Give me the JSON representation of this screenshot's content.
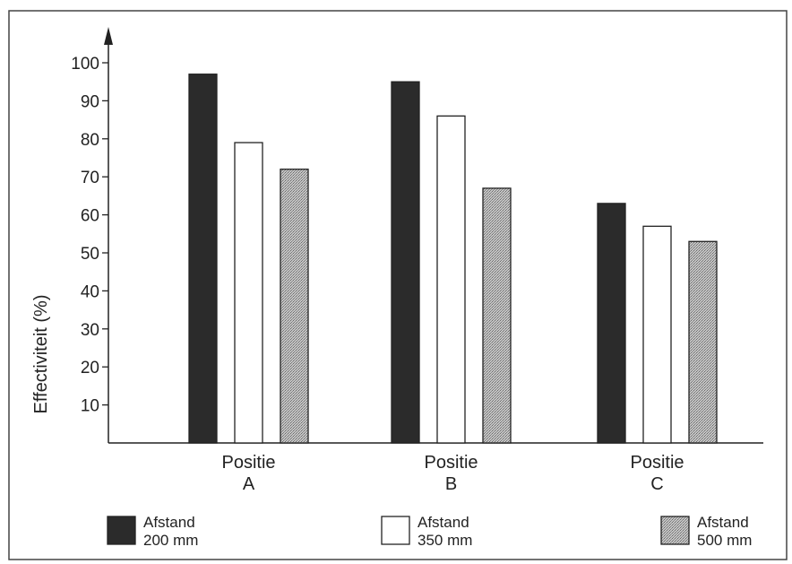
{
  "chart_data": {
    "type": "bar",
    "title": "",
    "xlabel": "",
    "ylabel": "Effectiviteit (%)",
    "ylim": [
      0,
      100
    ],
    "yticks": [
      10,
      20,
      30,
      40,
      50,
      60,
      70,
      80,
      90,
      100
    ],
    "categories": [
      [
        "Positie",
        "A"
      ],
      [
        "Positie",
        "B"
      ],
      [
        "Positie",
        "C"
      ]
    ],
    "series": [
      {
        "name": "Afstand 200 mm",
        "name_lines": [
          "Afstand",
          "200 mm"
        ],
        "fill": "#2b2b2b",
        "pattern": "solid",
        "values": [
          97,
          95,
          63
        ]
      },
      {
        "name": "Afstand 350 mm",
        "name_lines": [
          "Afstand",
          "350 mm"
        ],
        "fill": "#ffffff",
        "pattern": "solid",
        "values": [
          79,
          86,
          57
        ]
      },
      {
        "name": "Afstand 500 mm",
        "name_lines": [
          "Afstand",
          "500 mm"
        ],
        "fill": "#b5b5b5",
        "pattern": "dotted",
        "values": [
          72,
          67,
          53
        ]
      }
    ],
    "grid": false,
    "legend_position": "bottom"
  }
}
